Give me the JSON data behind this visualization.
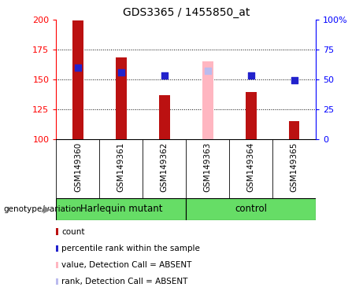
{
  "title": "GDS3365 / 1455850_at",
  "samples": [
    "GSM149360",
    "GSM149361",
    "GSM149362",
    "GSM149363",
    "GSM149364",
    "GSM149365"
  ],
  "count_values": [
    199,
    168,
    137,
    165,
    139,
    115
  ],
  "count_absent": [
    false,
    false,
    false,
    true,
    false,
    false
  ],
  "percentile_values": [
    160,
    156,
    153,
    157,
    153,
    149
  ],
  "percentile_absent": [
    false,
    false,
    false,
    true,
    false,
    false
  ],
  "ymin": 100,
  "ymax": 200,
  "y2min": 0,
  "y2max": 100,
  "yticks": [
    100,
    125,
    150,
    175,
    200
  ],
  "y2ticks": [
    0,
    25,
    50,
    75,
    100
  ],
  "bar_color": "#BB1111",
  "bar_absent_color": "#FFB6C1",
  "dot_color": "#2222CC",
  "dot_absent_color": "#BBBBEE",
  "sample_bg_color": "#C8C8C8",
  "group_bg_color": "#66DD66",
  "legend_items": [
    {
      "label": "count",
      "color": "#BB1111"
    },
    {
      "label": "percentile rank within the sample",
      "color": "#2222CC"
    },
    {
      "label": "value, Detection Call = ABSENT",
      "color": "#FFB6C1"
    },
    {
      "label": "rank, Detection Call = ABSENT",
      "color": "#BBBBEE"
    }
  ],
  "bar_width": 0.25,
  "dot_size": 35,
  "genotype_label": "genotype/variation",
  "group_spans": [
    [
      0,
      3,
      "Harlequin mutant"
    ],
    [
      3,
      6,
      "control"
    ]
  ]
}
